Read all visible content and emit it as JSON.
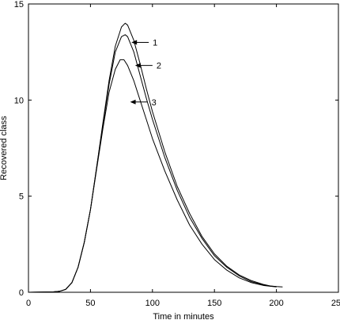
{
  "chart_data": {
    "type": "line",
    "title": "",
    "xlabel": "Time in minutes",
    "ylabel": "Recovered class",
    "xlim": [
      0,
      250
    ],
    "ylim": [
      0,
      15
    ],
    "xticks": [
      0,
      50,
      100,
      150,
      200,
      250
    ],
    "yticks": [
      0,
      5,
      10,
      15
    ],
    "grid": false,
    "series": [
      {
        "x": [
          0,
          20,
          25,
          30,
          35,
          40,
          45,
          50,
          55,
          60,
          65,
          70,
          75,
          78,
          80,
          85,
          90,
          95,
          100,
          110,
          120,
          130,
          140,
          150,
          160,
          170,
          180,
          190,
          195,
          200,
          205
        ],
        "y": [
          0,
          0.02,
          0.05,
          0.15,
          0.5,
          1.3,
          2.6,
          4.3,
          6.5,
          8.8,
          11.0,
          12.8,
          13.8,
          14.0,
          13.9,
          13.1,
          11.9,
          10.6,
          9.4,
          7.3,
          5.5,
          4.1,
          2.9,
          2.0,
          1.35,
          0.9,
          0.6,
          0.4,
          0.33,
          0.3,
          0.28
        ]
      },
      {
        "x": [
          0,
          20,
          25,
          30,
          35,
          40,
          45,
          50,
          55,
          60,
          65,
          70,
          75,
          78,
          80,
          85,
          90,
          95,
          100,
          110,
          120,
          130,
          140,
          150,
          160,
          170,
          180,
          190,
          195,
          200
        ],
        "y": [
          0,
          0.02,
          0.05,
          0.15,
          0.5,
          1.3,
          2.6,
          4.3,
          6.5,
          8.7,
          10.8,
          12.5,
          13.3,
          13.4,
          13.3,
          12.5,
          11.3,
          10.1,
          9.0,
          7.0,
          5.3,
          3.9,
          2.8,
          1.9,
          1.3,
          0.85,
          0.55,
          0.38,
          0.32,
          0.3
        ]
      },
      {
        "x": [
          0,
          20,
          25,
          30,
          35,
          40,
          45,
          50,
          55,
          60,
          65,
          70,
          74,
          77,
          80,
          85,
          90,
          95,
          100,
          110,
          120,
          130,
          140,
          150,
          160,
          170,
          180,
          190,
          200
        ],
        "y": [
          0,
          0.02,
          0.05,
          0.15,
          0.5,
          1.3,
          2.6,
          4.3,
          6.4,
          8.5,
          10.4,
          11.6,
          12.1,
          12.1,
          11.8,
          11.0,
          10.0,
          9.0,
          8.0,
          6.3,
          4.8,
          3.5,
          2.5,
          1.7,
          1.15,
          0.75,
          0.5,
          0.35,
          0.28
        ]
      }
    ],
    "annotations": [
      {
        "label": "1",
        "x": 83,
        "y": 13.0
      },
      {
        "label": "2",
        "x": 86,
        "y": 11.8
      },
      {
        "label": "3",
        "x": 82,
        "y": 9.9
      }
    ]
  }
}
